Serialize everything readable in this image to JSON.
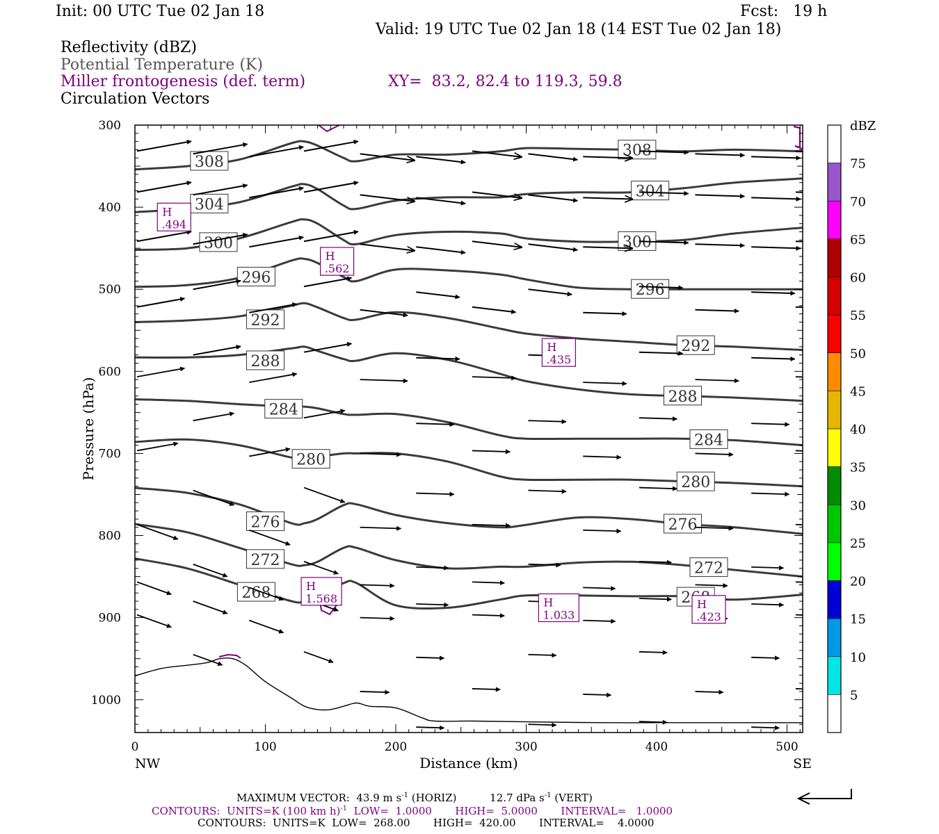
{
  "header": {
    "init": "Init: 00 UTC Tue 02 Jan 18",
    "fcst": "Fcst:   19 h",
    "valid": "Valid: 19 UTC Tue 02 Jan 18 (14 EST Tue 02 Jan 18)",
    "field1": "Reflectivity (dBZ)",
    "field2": "Potential Temperature (K)",
    "field3": "Miller frontogenesis (def. term)",
    "xy": "XY=  83.2, 82.4 to 119.3, 59.8",
    "field4": "Circulation Vectors"
  },
  "colors": {
    "theta": "#3a3a3a",
    "fronto": "#7b007b",
    "vectors": "#000000",
    "terrain": "#000000"
  },
  "chart_data": {
    "type": "contour-cross-section",
    "xlabel": "Distance (km)",
    "ylabel": "Pressure (hPa)",
    "xlim": [
      0,
      512
    ],
    "ylim": [
      1040,
      300
    ],
    "x_ticks": [
      0,
      100,
      200,
      300,
      400,
      500
    ],
    "y_ticks": [
      300,
      400,
      500,
      600,
      700,
      800,
      900,
      1000
    ],
    "x_end_labels": {
      "left": "NW",
      "right": "SE"
    },
    "theta_contours": [
      {
        "level": "308",
        "x": [
          0,
          40,
          80,
          120,
          130,
          140,
          160,
          170,
          200,
          240,
          280,
          300,
          340,
          380,
          420,
          460,
          512
        ],
        "p": [
          354,
          350,
          342,
          322,
          320,
          325,
          340,
          344,
          336,
          336,
          332,
          328,
          329,
          330,
          332,
          330,
          332
        ],
        "label_x": 57,
        "label_p": 344
      },
      {
        "level": "304",
        "x": [
          0,
          40,
          80,
          120,
          130,
          140,
          160,
          170,
          200,
          240,
          280,
          300,
          340,
          380,
          420,
          460,
          512
        ],
        "p": [
          406,
          402,
          394,
          375,
          372,
          378,
          398,
          402,
          392,
          388,
          388,
          384,
          382,
          382,
          377,
          370,
          365
        ],
        "label_x": 57,
        "label_p": 396
      },
      {
        "level": "300",
        "x": [
          0,
          40,
          80,
          120,
          130,
          140,
          160,
          170,
          200,
          240,
          280,
          300,
          340,
          380,
          420,
          460,
          512
        ],
        "p": [
          452,
          450,
          438,
          418,
          415,
          420,
          440,
          445,
          434,
          430,
          432,
          438,
          442,
          442,
          440,
          432,
          425
        ],
        "label_x": 64,
        "label_p": 443
      },
      {
        "level": "296",
        "x": [
          0,
          40,
          80,
          120,
          130,
          140,
          160,
          170,
          200,
          240,
          280,
          300,
          340,
          380,
          420,
          460,
          512
        ],
        "p": [
          497,
          495,
          486,
          465,
          463,
          468,
          485,
          490,
          476,
          477,
          482,
          488,
          498,
          500,
          500,
          500,
          500
        ],
        "label_x": 93,
        "label_p": 485
      },
      {
        "level": "292",
        "x": [
          0,
          40,
          80,
          120,
          130,
          140,
          160,
          170,
          200,
          240,
          280,
          300,
          340,
          380,
          420,
          460,
          512
        ],
        "p": [
          540,
          538,
          533,
          520,
          517,
          522,
          535,
          537,
          528,
          535,
          548,
          554,
          560,
          564,
          568,
          570,
          574
        ],
        "label_x": 100,
        "label_p": 537
      },
      {
        "level": "288",
        "x": [
          0,
          40,
          80,
          120,
          130,
          140,
          160,
          170,
          200,
          240,
          280,
          300,
          340,
          380,
          420,
          460,
          512
        ],
        "p": [
          583,
          583,
          580,
          572,
          570,
          575,
          585,
          587,
          578,
          586,
          603,
          612,
          622,
          628,
          630,
          632,
          636
        ],
        "label_x": 100,
        "label_p": 587
      },
      {
        "level": "284",
        "x": [
          0,
          40,
          80,
          120,
          130,
          140,
          160,
          170,
          200,
          240,
          280,
          300,
          340,
          380,
          420,
          460,
          512
        ],
        "p": [
          634,
          636,
          640,
          643,
          643,
          645,
          652,
          653,
          652,
          662,
          678,
          682,
          682,
          682,
          682,
          684,
          690
        ],
        "label_x": 114,
        "label_p": 646
      },
      {
        "level": "280",
        "x": [
          0,
          40,
          80,
          120,
          130,
          140,
          160,
          170,
          200,
          240,
          280,
          300,
          340,
          380,
          420,
          460,
          512
        ],
        "p": [
          686,
          683,
          690,
          705,
          705,
          704,
          700,
          700,
          700,
          710,
          728,
          732,
          732,
          732,
          734,
          736,
          740
        ],
        "label_x": 135,
        "label_p": 707
      },
      {
        "level": "276",
        "x": [
          0,
          40,
          80,
          120,
          130,
          140,
          160,
          170,
          200,
          240,
          280,
          300,
          340,
          380,
          420,
          460,
          512
        ],
        "p": [
          742,
          748,
          762,
          785,
          785,
          780,
          763,
          762,
          775,
          785,
          790,
          787,
          778,
          780,
          786,
          790,
          798
        ],
        "label_x": 100,
        "label_p": 783
      },
      {
        "level": "272",
        "x": [
          0,
          40,
          80,
          120,
          130,
          140,
          160,
          170,
          200,
          240,
          280,
          300,
          340,
          380,
          420,
          460,
          512
        ],
        "p": [
          786,
          796,
          815,
          835,
          836,
          832,
          815,
          815,
          830,
          840,
          838,
          838,
          833,
          832,
          836,
          842,
          850
        ],
        "label_x": 100,
        "label_p": 829
      },
      {
        "level": "268",
        "x": [
          0,
          40,
          80,
          120,
          130,
          140,
          160,
          170,
          200,
          240,
          280,
          300,
          340,
          380,
          420,
          460,
          512
        ],
        "p": [
          828,
          840,
          860,
          880,
          880,
          875,
          858,
          858,
          885,
          888,
          878,
          873,
          873,
          874,
          874,
          878,
          872
        ],
        "label_x": 93,
        "label_p": 869
      }
    ],
    "frontogenesis_maxima": [
      {
        "label": "H",
        "value": ".494",
        "x": 30,
        "p": 412
      },
      {
        "label": "H",
        "value": ".562",
        "x": 155,
        "p": 466
      },
      {
        "label": "H",
        "value": ".435",
        "x": 325,
        "p": 577
      },
      {
        "label": "H",
        "value": "1.568",
        "x": 143,
        "p": 868
      },
      {
        "label": "H",
        "value": "1.033",
        "x": 325,
        "p": 888
      },
      {
        "label": "H",
        "value": ".423",
        "x": 440,
        "p": 890
      }
    ],
    "terrain": {
      "x": [
        0,
        20,
        40,
        55,
        65,
        75,
        85,
        100,
        120,
        130,
        140,
        150,
        160,
        170,
        180,
        200,
        220,
        230,
        260,
        300,
        360,
        420,
        480,
        512
      ],
      "p": [
        971,
        962,
        958,
        955,
        950,
        950,
        958,
        978,
        998,
        1008,
        1012,
        1012,
        1008,
        1004,
        1008,
        1010,
        1022,
        1026,
        1026,
        1027,
        1028,
        1028,
        1028,
        1028
      ]
    },
    "colorbar": {
      "title": "dBZ",
      "labels": [
        "5",
        "10",
        "15",
        "20",
        "25",
        "30",
        "35",
        "40",
        "45",
        "50",
        "55",
        "60",
        "65",
        "70",
        "75"
      ],
      "colors": [
        "#ffffff",
        "#00e5e5",
        "#0099e6",
        "#0000d6",
        "#00ff00",
        "#00c800",
        "#008c00",
        "#ffff00",
        "#e5b800",
        "#ff8c00",
        "#ff0000",
        "#d60000",
        "#b00000",
        "#ff00ff",
        "#9955cc",
        "#ffffff"
      ]
    },
    "max_vector_ref": "#"
  },
  "footer": {
    "maxvec_prefix": "MAXIMUM VECTOR:  43.9 m s",
    "maxvec_sup1": "-1",
    "maxvec_mid": " (HORIZ)          12.7 dPa s",
    "maxvec_sup2": "-1",
    "maxvec_end": " (VERT)",
    "contour1_prefix": "CONTOURS:  UNITS=K (100 km h)",
    "contour1_sup": "-1",
    "contour1_end": "  LOW=  1.0000       HIGH=  5.0000       INTERVAL=   1.0000",
    "contour2": "CONTOURS:  UNITS=K  LOW=  268.00       HIGH=  420.00       INTERVAL=    4.0000"
  }
}
